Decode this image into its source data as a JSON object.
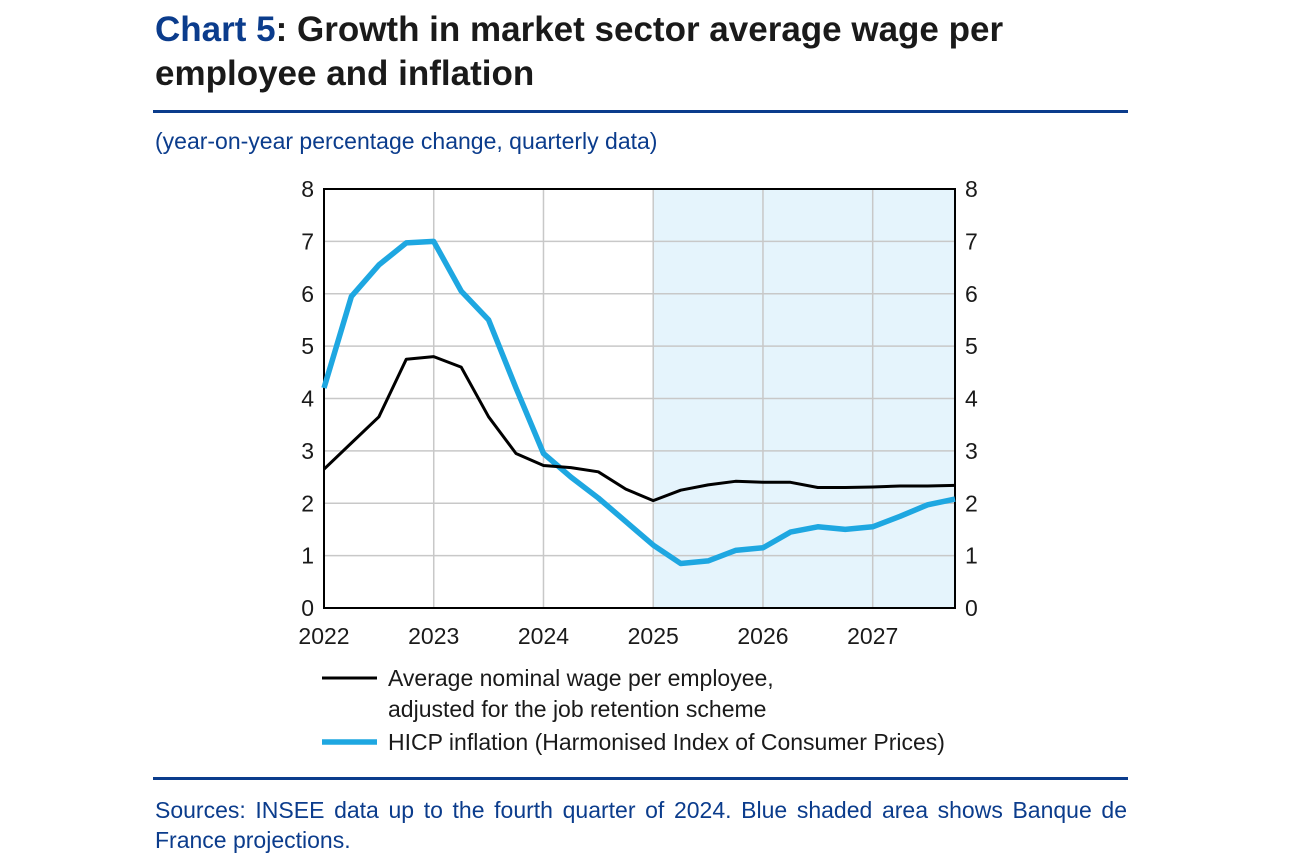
{
  "header": {
    "title_num": "Chart 5",
    "title_rest": ": Growth in market sector average wage per employee and inflation",
    "subtitle": "(year-on-year percentage change, quarterly data)"
  },
  "footer": {
    "sources": "Sources: INSEE data up to the fourth quarter of 2024. Blue shaded area shows Banque de France projections."
  },
  "colors": {
    "accent": "#0b3c8c",
    "wage": "#000000",
    "hicp": "#1ea7e1",
    "shade": "#e5f4fc",
    "grid": "#c8c8c8"
  },
  "chart_data": {
    "type": "line",
    "title": "Growth in market sector average wage per employee and inflation",
    "ylabel": "year-on-year percentage change, quarterly data",
    "xlim": [
      2022,
      2027.75
    ],
    "ylim": [
      0,
      8
    ],
    "x_ticks": [
      "2022",
      "2023",
      "2024",
      "2025",
      "2026",
      "2027"
    ],
    "y_ticks": [
      "0",
      "1",
      "2",
      "3",
      "4",
      "5",
      "6",
      "7",
      "8"
    ],
    "projection_range": [
      2025,
      2027.75
    ],
    "x": [
      2022,
      2022.25,
      2022.5,
      2022.75,
      2023,
      2023.25,
      2023.5,
      2023.75,
      2024,
      2024.25,
      2024.5,
      2024.75,
      2025,
      2025.25,
      2025.5,
      2025.75,
      2026,
      2026.25,
      2026.5,
      2026.75,
      2027,
      2027.25,
      2027.5,
      2027.75
    ],
    "series": [
      {
        "name": "Average nominal wage per employee, adjusted for the job retention scheme",
        "legend_line1": "Average nominal wage per employee,",
        "legend_line2": "adjusted for the job retention scheme",
        "values": [
          2.65,
          3.15,
          3.65,
          4.75,
          4.8,
          4.6,
          3.65,
          2.95,
          2.72,
          2.68,
          2.6,
          2.27,
          2.05,
          2.25,
          2.35,
          2.42,
          2.4,
          2.4,
          2.3,
          2.3,
          2.31,
          2.33,
          2.33,
          2.34
        ]
      },
      {
        "name": "HICP inflation (Harmonised Index of Consumer Prices)",
        "legend_line1": "HICP inflation (Harmonised Index of Consumer Prices)",
        "values": [
          4.2,
          5.95,
          6.55,
          6.97,
          7.0,
          6.05,
          5.5,
          4.2,
          2.95,
          2.5,
          2.1,
          1.65,
          1.2,
          0.85,
          0.9,
          1.1,
          1.15,
          1.45,
          1.55,
          1.5,
          1.55,
          1.75,
          1.97,
          2.08
        ]
      }
    ]
  }
}
